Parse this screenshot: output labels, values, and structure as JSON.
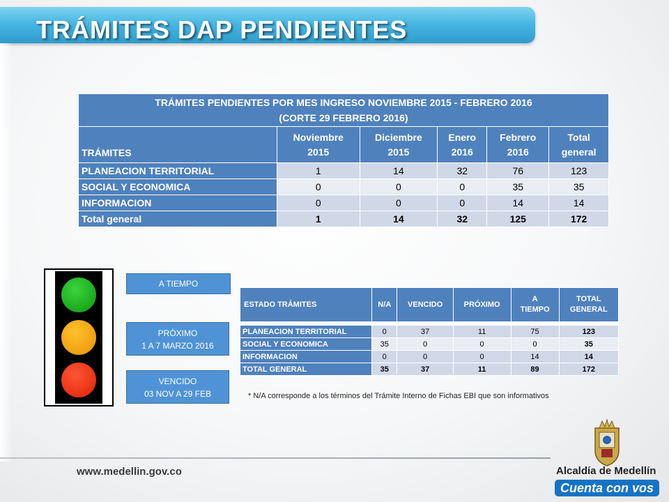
{
  "title": "TRÁMITES DAP PENDIENTES",
  "table1": {
    "title_line1": "TRÁMITES PENDIENTES POR MES INGRESO NOVIEMBRE 2015 - FEBRERO 2016",
    "title_line2": "(CORTE 29 FEBRERO 2016)",
    "col0": "TRÁMITES",
    "columns": [
      {
        "l1": "Noviembre",
        "l2": "2015"
      },
      {
        "l1": "Diciembre",
        "l2": "2015"
      },
      {
        "l1": "Enero",
        "l2": "2016"
      },
      {
        "l1": "Febrero",
        "l2": "2016"
      },
      {
        "l1": "Total",
        "l2": "general"
      }
    ],
    "rows": [
      {
        "label": "PLANEACION TERRITORIAL",
        "values": [
          "1",
          "14",
          "32",
          "76",
          "123"
        ]
      },
      {
        "label": "SOCIAL Y ECONOMICA",
        "values": [
          "0",
          "0",
          "0",
          "35",
          "35"
        ]
      },
      {
        "label": "INFORMACION",
        "values": [
          "0",
          "0",
          "0",
          "14",
          "14"
        ]
      },
      {
        "label": "Total general",
        "values": [
          "1",
          "14",
          "32",
          "125",
          "172"
        ]
      }
    ]
  },
  "legend": {
    "a_tiempo": "A TIEMPO",
    "proximo_l1": "PRÓXIMO",
    "proximo_l2": "1 A 7 MARZO 2016",
    "vencido_l1": "VENCIDO",
    "vencido_l2": "03 NOV A 29 FEB"
  },
  "traffic_light": {
    "top_color": "#1faa1f",
    "middle_color": "#f5a623",
    "bottom_color": "#f03c1e"
  },
  "table2": {
    "col0": "ESTADO TRÁMITES",
    "columns": [
      {
        "l1": "N/A",
        "l2": ""
      },
      {
        "l1": "VENCIDO",
        "l2": ""
      },
      {
        "l1": "PRÓXIMO",
        "l2": ""
      },
      {
        "l1": "A",
        "l2": "TIEMPO"
      },
      {
        "l1": "TOTAL",
        "l2": "GENERAL"
      }
    ],
    "rows": [
      {
        "label": "PLANEACION TERRITORIAL",
        "values": [
          "0",
          "37",
          "11",
          "75",
          "123"
        ]
      },
      {
        "label": "SOCIAL Y ECONOMICA",
        "values": [
          "35",
          "0",
          "0",
          "0",
          "35"
        ]
      },
      {
        "label": "INFORMACION",
        "values": [
          "0",
          "0",
          "0",
          "14",
          "14"
        ]
      },
      {
        "label": "TOTAL GENERAL",
        "values": [
          "35",
          "37",
          "11",
          "89",
          "172"
        ]
      }
    ]
  },
  "note": "* N/A corresponde a los términos del Trámite Interno de Fichas EBI que son informativos",
  "url": "www.medellin.gov.co",
  "brand": {
    "name": "Alcaldía de Medellín",
    "slogan": "Cuenta con vos"
  }
}
